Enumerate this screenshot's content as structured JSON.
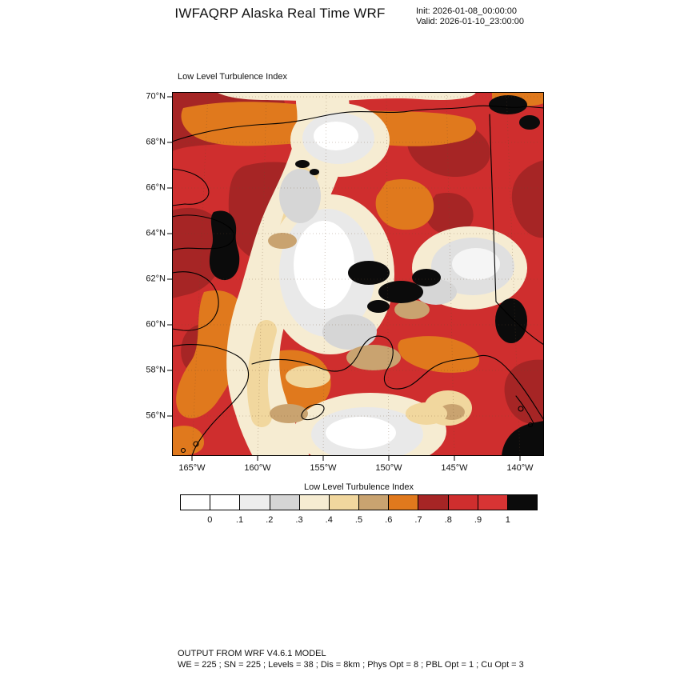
{
  "header": {
    "title": "IWFAQRP Alaska Real Time WRF",
    "init": "Init: 2026-01-08_00:00:00",
    "valid": "Valid: 2026-01-10_23:00:00"
  },
  "map": {
    "field_label": "Low Level Turbulence Index",
    "lat_ticks": [
      "70°N",
      "68°N",
      "66°N",
      "64°N",
      "62°N",
      "60°N",
      "58°N",
      "56°N"
    ],
    "lon_ticks": [
      "165°W",
      "160°W",
      "155°W",
      "150°W",
      "145°W",
      "140°W"
    ]
  },
  "colorbar": {
    "title": "Low Level Turbulence Index",
    "tick_labels": [
      "0",
      ".1",
      ".2",
      ".3",
      ".4",
      ".5",
      ".6",
      ".7",
      ".8",
      ".9",
      "1"
    ],
    "cell_colors": [
      "#ffffff",
      "#ffffff",
      "#ededed",
      "#d5d5d5",
      "#f6ecd2",
      "#f1d79e",
      "#c9a370",
      "#e0791d",
      "#a62525",
      "#cf2e2e",
      "#d83434",
      "#0b0b0b"
    ]
  },
  "footer": {
    "line1": "OUTPUT FROM WRF V4.6.1 MODEL",
    "line2": "WE = 225 ; SN = 225 ; Levels = 38 ; Dis = 8km ; Phys Opt = 8 ; PBL Opt = 1 ; Cu Opt = 3"
  },
  "chart_data": {
    "type": "heatmap",
    "title": "Low Level Turbulence Index",
    "region": "Alaska WRF model domain",
    "x_ticks": [
      "165°W",
      "160°W",
      "155°W",
      "150°W",
      "145°W",
      "140°W"
    ],
    "y_ticks": [
      "70°N",
      "68°N",
      "66°N",
      "64°N",
      "62°N",
      "60°N",
      "58°N",
      "56°N"
    ],
    "scale_levels": [
      0,
      0.1,
      0.2,
      0.3,
      0.4,
      0.5,
      0.6,
      0.7,
      0.8,
      0.9,
      1
    ],
    "scale_colors": [
      "#ffffff",
      "#ffffff",
      "#ededed",
      "#d5d5d5",
      "#f6ecd2",
      "#f1d79e",
      "#c9a370",
      "#e0791d",
      "#a62525",
      "#cf2e2e",
      "#d83434",
      "#0b0b0b"
    ],
    "legend_position": "bottom"
  }
}
